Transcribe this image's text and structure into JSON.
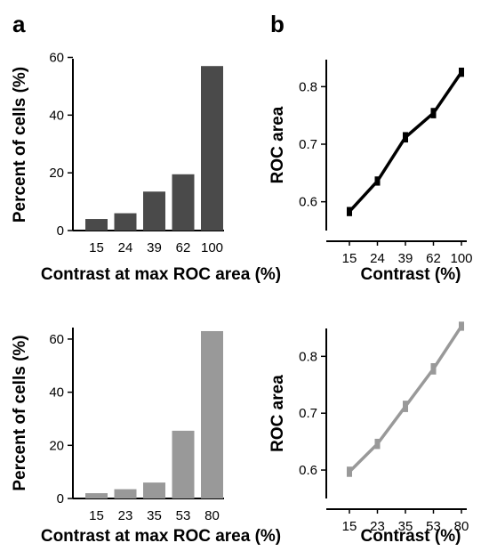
{
  "panel_labels": {
    "a": "a",
    "b": "b"
  },
  "chart_data": [
    {
      "id": "top-left",
      "type": "bar",
      "categories": [
        "15",
        "24",
        "39",
        "62",
        "100"
      ],
      "values": [
        4.0,
        6.0,
        13.5,
        19.5,
        57.0
      ],
      "xlabel": "Contrast at max ROC area (%)",
      "ylabel": "Percent of cells (%)",
      "ylim": [
        0,
        62
      ],
      "yticks": [
        0,
        20,
        40,
        60
      ],
      "color": "#4a4a4a"
    },
    {
      "id": "top-right",
      "type": "line",
      "categories": [
        "15",
        "24",
        "39",
        "62",
        "100"
      ],
      "values": [
        0.583,
        0.636,
        0.712,
        0.754,
        0.825
      ],
      "errors": [
        0.008,
        0.008,
        0.009,
        0.009,
        0.008
      ],
      "xlabel": "Contrast (%)",
      "ylabel": "ROC area",
      "ylim": [
        0.55,
        0.85
      ],
      "yticks": [
        0.6,
        0.7,
        0.8
      ],
      "color": "#000000"
    },
    {
      "id": "bottom-left",
      "type": "bar",
      "categories": [
        "15",
        "23",
        "35",
        "53",
        "80"
      ],
      "values": [
        2.0,
        3.5,
        6.0,
        25.5,
        63.0
      ],
      "xlabel": "Contrast at max ROC area (%)",
      "ylabel": "Percent of cells (%)",
      "ylim": [
        0,
        65
      ],
      "yticks": [
        0,
        20,
        40,
        60
      ],
      "color": "#999999"
    },
    {
      "id": "bottom-right",
      "type": "line",
      "categories": [
        "15",
        "23",
        "35",
        "53",
        "80"
      ],
      "values": [
        0.597,
        0.646,
        0.712,
        0.778,
        0.853
      ],
      "errors": [
        0.009,
        0.009,
        0.01,
        0.01,
        0.008
      ],
      "xlabel": "Contrast (%)",
      "ylabel": "ROC area",
      "ylim": [
        0.55,
        0.86
      ],
      "yticks": [
        0.6,
        0.7,
        0.8
      ],
      "color": "#999999"
    }
  ]
}
